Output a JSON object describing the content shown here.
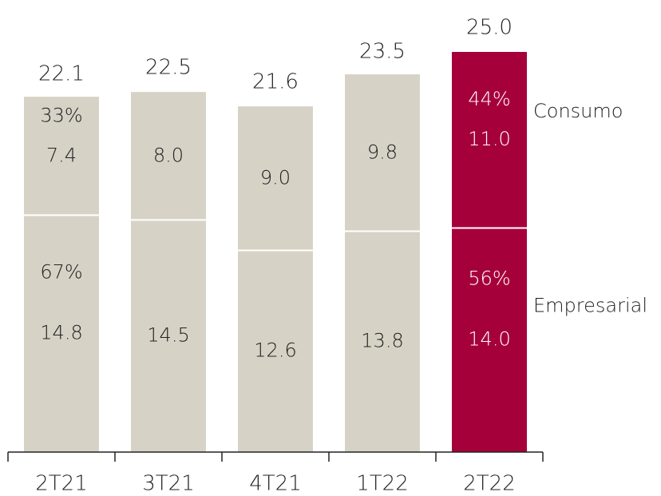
{
  "chart_data": {
    "type": "stacked_bar",
    "categories": [
      "2T21",
      "3T21",
      "4T21",
      "1T22",
      "2T22"
    ],
    "series": [
      {
        "name": "Empresarial",
        "values": [
          14.8,
          14.5,
          12.6,
          13.8,
          14.0
        ],
        "share_labels": [
          "67%",
          null,
          null,
          null,
          "56%"
        ]
      },
      {
        "name": "Consumo",
        "values": [
          7.4,
          8.0,
          9.0,
          9.8,
          11.0
        ],
        "share_labels": [
          "33%",
          null,
          null,
          null,
          "44%"
        ]
      }
    ],
    "totals": [
      22.1,
      22.5,
      21.6,
      23.5,
      25.0
    ],
    "total_labels": [
      "22.1",
      "22.5",
      "21.6",
      "23.5",
      "25.0"
    ],
    "value_labels": [
      [
        "14.8",
        "14.5",
        "12.6",
        "13.8",
        "14.0"
      ],
      [
        "7.4",
        "8.0",
        "9.0",
        "9.8",
        "11.0"
      ]
    ],
    "bar_colors": [
      "#d6d3c6",
      "#d6d3c6",
      "#d6d3c6",
      "#d6d3c6",
      "#a6003a"
    ],
    "label_colors": [
      "#222222",
      "#222222",
      "#222222",
      "#222222",
      "#ffffff"
    ]
  }
}
